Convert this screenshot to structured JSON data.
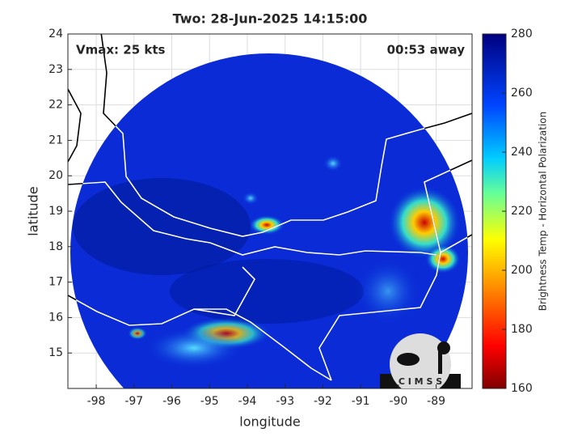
{
  "chart_data": {
    "type": "map",
    "title": "Two: 28-Jun-2025 14:15:00",
    "annotations": [
      "Vmax: 25 kts",
      "00:53 away"
    ],
    "x_label": "longitude",
    "y_label": "latitude",
    "xlim": [
      -98.75,
      -88.05
    ],
    "ylim": [
      14,
      24
    ],
    "xticks": [
      -98,
      -97,
      -96,
      -95,
      -94,
      -93,
      -92,
      -91,
      -90,
      -89
    ],
    "yticks": [
      15,
      16,
      17,
      18,
      19,
      20,
      21,
      22,
      23,
      24
    ],
    "grid": true,
    "colorbar": {
      "label": "Brightness Temp - Horizontal Polarization",
      "lim": [
        160,
        280
      ],
      "ticks": [
        160,
        180,
        200,
        220,
        240,
        260,
        280
      ]
    }
  },
  "logo": {
    "text": "C I M S S"
  }
}
